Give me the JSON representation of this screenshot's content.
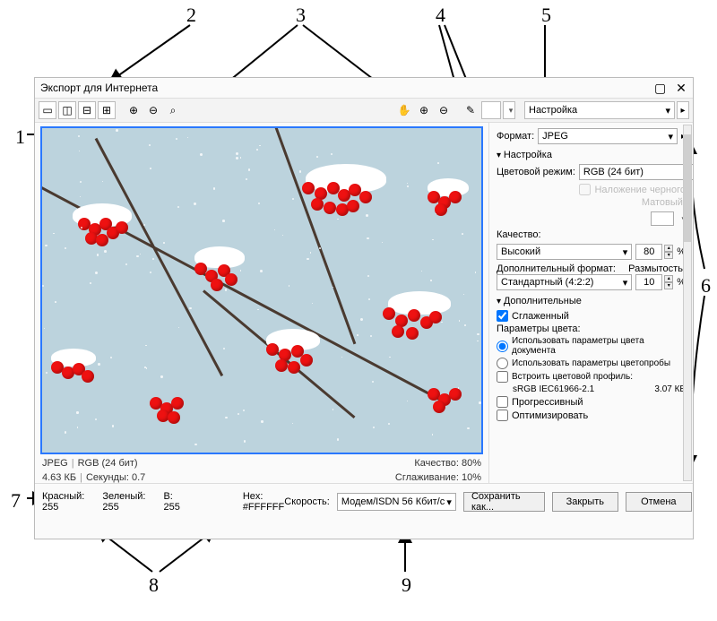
{
  "annotations": {
    "n1": "1",
    "n2": "2",
    "n3": "3",
    "n4": "4",
    "n5": "5",
    "n6": "6",
    "n7": "7",
    "n8": "8",
    "n9": "9"
  },
  "window": {
    "title": "Экспорт для Интернета",
    "toolbar_preset_label": "Настройка"
  },
  "preview": {
    "bg_color": "#bcd3dd",
    "border_color": "#2a78ff",
    "berry_color": "#dd1818",
    "snow_color": "#ffffff",
    "branch_color": "#4a3a30"
  },
  "info": {
    "format_line_a": "JPEG",
    "format_line_b": "RGB (24 бит)",
    "size": "4.63 КБ",
    "seconds_label": "Секунды:",
    "seconds": "0.7",
    "quality_label": "Качество:",
    "quality_pct": "80%",
    "smoothing_label": "Сглаживание:",
    "smoothing_pct": "10%"
  },
  "bottom": {
    "red_label": "Красный:",
    "red": "255",
    "green_label": "Зеленый:",
    "green": "255",
    "blue_label": "B:",
    "blue": "255",
    "hex_label": "Hex:",
    "hex": "#FFFFFF",
    "speed_label": "Скорость:",
    "speed_value": "Модем/ISDN 56 Кбит/с",
    "save_as": "Сохранить как...",
    "close": "Закрыть",
    "cancel": "Отмена"
  },
  "side": {
    "format_label": "Формат:",
    "format_value": "JPEG",
    "settings_section": "Настройка",
    "color_mode_label": "Цветовой режим:",
    "color_mode_value": "RGB (24 бит)",
    "overlay_black": "Наложение черного",
    "matte_label": "Матовый:",
    "quality_label": "Качество:",
    "quality_value": "Высокий",
    "quality_num": "80",
    "pct": "%",
    "sub_format_label": "Дополнительный формат:",
    "blur_label": "Размытость:",
    "sub_format_value": "Стандартный (4:2:2)",
    "blur_num": "10",
    "advanced_section": "Дополнительные",
    "anti_aliased": "Сглаженный",
    "color_params": "Параметры цвета:",
    "opt_doc": "Использовать параметры цвета документа",
    "opt_proof": "Использовать параметры цветопробы",
    "embed_profile": "Встроить цветовой профиль:",
    "profile_name": "sRGB IEC61966-2.1",
    "profile_size": "3.07 КБ",
    "progressive": "Прогрессивный",
    "optimize": "Оптимизировать"
  }
}
